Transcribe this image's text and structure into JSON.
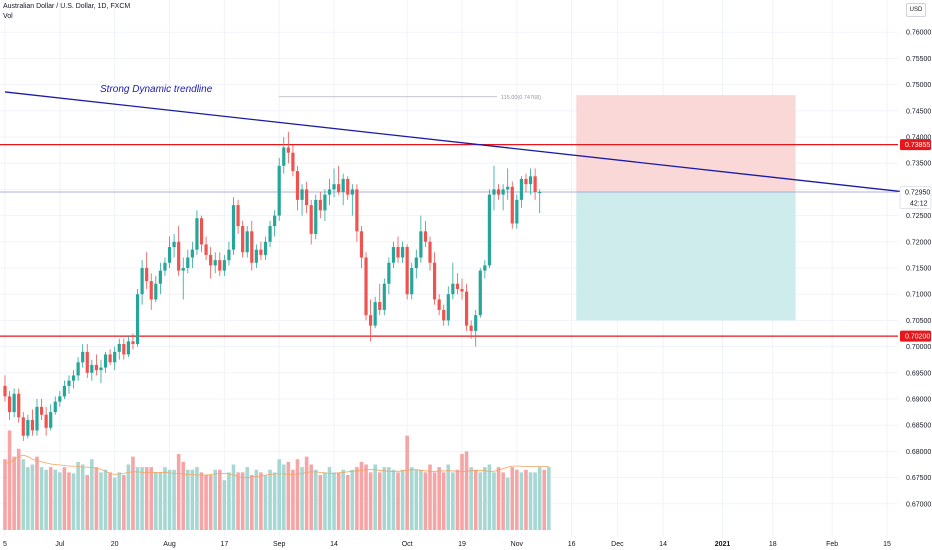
{
  "header": {
    "symbol_line": "Australian Dollar / U.S. Dollar, 1D, FXCM",
    "volume_label": "Vol"
  },
  "currency_button": "USD",
  "chart_data": {
    "type": "candlestick",
    "title": "Australian Dollar / U.S. Dollar, 1D, FXCM",
    "ylim": [
      0.665,
      0.765
    ],
    "y_ticks": [
      0.67,
      0.675,
      0.68,
      0.685,
      0.69,
      0.695,
      0.7,
      0.705,
      0.71,
      0.715,
      0.72,
      0.725,
      0.73,
      0.735,
      0.74,
      0.745,
      0.75,
      0.755,
      0.76
    ],
    "y_tick_labels": [
      "0.67000",
      "0.67500",
      "0.68000",
      "0.68500",
      "0.69000",
      "0.69500",
      "0.70000",
      "0.70500",
      "0.71000",
      "0.71500",
      "0.72000",
      "0.72500",
      "0.73000",
      "0.73500",
      "0.74000",
      "0.74500",
      "0.75000",
      "0.75500",
      "0.76000"
    ],
    "x_tick_labels": [
      "5",
      "Jul",
      "20",
      "Aug",
      "17",
      "Sep",
      "14",
      "Oct",
      "19",
      "Nov",
      "16",
      "Dec",
      "14",
      "2021",
      "18",
      "Feb",
      "15"
    ],
    "x_tick_bars": [
      0,
      12,
      24,
      36,
      48,
      60,
      72,
      88,
      100,
      112,
      124,
      134,
      144,
      157,
      168,
      181,
      193
    ],
    "annotation": "Strong Dynamic trendline",
    "fib_label": "115.00(0.74768)",
    "fib_price": 0.74768,
    "resistance": {
      "price": 0.73855,
      "label": "0.73855",
      "color": "#e8151a"
    },
    "support": {
      "price": 0.702,
      "label": "0.70200",
      "color": "#e8151a"
    },
    "current_price": {
      "price": 0.7295,
      "label": "0.72950",
      "countdown": "42:12"
    },
    "trendline": {
      "start_bar": 0,
      "start_price": 0.7486,
      "end_bar": 197,
      "end_price": 0.7295,
      "color": "#1a1aa8"
    },
    "position": {
      "start_bar": 125,
      "end_bar": 173,
      "entry": 0.7295,
      "stop": 0.748,
      "target": 0.705,
      "risk_color": "#fbd8d8",
      "reward_color": "#cdeceb"
    },
    "volume_ma": [
      0.6778,
      0.6778,
      0.6785,
      0.679,
      0.6793,
      0.679,
      0.6785,
      0.6782,
      0.678,
      0.6778,
      0.6776,
      0.6775,
      0.6774,
      0.6773,
      0.6772,
      0.6772,
      0.6771,
      0.677,
      0.677,
      0.6769,
      0.6768,
      0.6766,
      0.6762,
      0.6758,
      0.6756,
      0.6757,
      0.6758,
      0.676,
      0.6761,
      0.6761,
      0.676,
      0.676,
      0.676,
      0.676,
      0.676,
      0.676,
      0.6759,
      0.6758,
      0.6758,
      0.6757,
      0.6756,
      0.6756,
      0.6755,
      0.6755,
      0.6755,
      0.6756,
      0.6757,
      0.6758,
      0.6758,
      0.6757,
      0.6755,
      0.6752,
      0.675,
      0.675,
      0.6751,
      0.6752,
      0.6753,
      0.6755,
      0.6756,
      0.6757,
      0.6757,
      0.6757,
      0.6756,
      0.6756,
      0.6757,
      0.6758,
      0.676,
      0.6761,
      0.6761,
      0.676,
      0.6759,
      0.6758,
      0.6758,
      0.6759,
      0.676,
      0.6761,
      0.6762,
      0.6763,
      0.6764,
      0.6765,
      0.6765,
      0.6765,
      0.6764,
      0.6763,
      0.6762,
      0.6762,
      0.6762,
      0.6763,
      0.6764,
      0.6765,
      0.6765,
      0.6764,
      0.6763,
      0.6762,
      0.6762,
      0.6762,
      0.6763,
      0.6763,
      0.6763,
      0.6762,
      0.6762,
      0.6762,
      0.6763,
      0.6764,
      0.6764,
      0.6763,
      0.6762,
      0.6762,
      0.6765,
      0.6767,
      0.677,
      0.6772,
      0.6772,
      0.6772,
      0.6771,
      0.6771,
      0.6771,
      0.6771,
      0.6771,
      0.6771
    ],
    "candles": [
      [
        0.6925,
        0.6945,
        0.6895,
        0.6905
      ],
      [
        0.6905,
        0.6915,
        0.686,
        0.6875
      ],
      [
        0.6875,
        0.692,
        0.6865,
        0.691
      ],
      [
        0.691,
        0.692,
        0.6855,
        0.6865
      ],
      [
        0.6865,
        0.6875,
        0.682,
        0.683
      ],
      [
        0.683,
        0.687,
        0.6825,
        0.686
      ],
      [
        0.686,
        0.688,
        0.683,
        0.684
      ],
      [
        0.684,
        0.69,
        0.683,
        0.6885
      ],
      [
        0.6885,
        0.69,
        0.686,
        0.687
      ],
      [
        0.687,
        0.6885,
        0.683,
        0.6845
      ],
      [
        0.6845,
        0.689,
        0.684,
        0.6875
      ],
      [
        0.6875,
        0.6905,
        0.687,
        0.6895
      ],
      [
        0.6895,
        0.6915,
        0.6885,
        0.6905
      ],
      [
        0.6905,
        0.6935,
        0.69,
        0.6925
      ],
      [
        0.6925,
        0.6945,
        0.691,
        0.6935
      ],
      [
        0.6935,
        0.6955,
        0.692,
        0.6945
      ],
      [
        0.6945,
        0.698,
        0.6935,
        0.697
      ],
      [
        0.697,
        0.7005,
        0.696,
        0.699
      ],
      [
        0.699,
        0.7005,
        0.694,
        0.695
      ],
      [
        0.695,
        0.6975,
        0.6935,
        0.6965
      ],
      [
        0.6965,
        0.6985,
        0.6945,
        0.6955
      ],
      [
        0.6955,
        0.6975,
        0.693,
        0.696
      ],
      [
        0.696,
        0.699,
        0.695,
        0.6985
      ],
      [
        0.6985,
        0.6995,
        0.6965,
        0.697
      ],
      [
        0.697,
        0.7,
        0.6955,
        0.699
      ],
      [
        0.699,
        0.7015,
        0.6975,
        0.7005
      ],
      [
        0.7005,
        0.7015,
        0.6975,
        0.6985
      ],
      [
        0.6985,
        0.702,
        0.698,
        0.701
      ],
      [
        0.701,
        0.7025,
        0.6995,
        0.7005
      ],
      [
        0.7005,
        0.711,
        0.7,
        0.71
      ],
      [
        0.71,
        0.7165,
        0.708,
        0.715
      ],
      [
        0.715,
        0.718,
        0.711,
        0.7125
      ],
      [
        0.7125,
        0.714,
        0.707,
        0.709
      ],
      [
        0.709,
        0.7135,
        0.7085,
        0.712
      ],
      [
        0.712,
        0.716,
        0.71,
        0.7145
      ],
      [
        0.7145,
        0.717,
        0.7135,
        0.716
      ],
      [
        0.716,
        0.721,
        0.715,
        0.719
      ],
      [
        0.719,
        0.7215,
        0.717,
        0.72
      ],
      [
        0.72,
        0.723,
        0.7135,
        0.7145
      ],
      [
        0.7145,
        0.717,
        0.709,
        0.715
      ],
      [
        0.715,
        0.7185,
        0.714,
        0.717
      ],
      [
        0.717,
        0.72,
        0.715,
        0.7185
      ],
      [
        0.7185,
        0.726,
        0.7175,
        0.7245
      ],
      [
        0.7245,
        0.725,
        0.718,
        0.7195
      ],
      [
        0.7195,
        0.721,
        0.7165,
        0.7175
      ],
      [
        0.7175,
        0.719,
        0.713,
        0.7155
      ],
      [
        0.7155,
        0.718,
        0.714,
        0.7165
      ],
      [
        0.7165,
        0.718,
        0.7135,
        0.7145
      ],
      [
        0.7145,
        0.7175,
        0.7135,
        0.7165
      ],
      [
        0.7165,
        0.72,
        0.7155,
        0.7185
      ],
      [
        0.7185,
        0.7285,
        0.7175,
        0.727
      ],
      [
        0.727,
        0.728,
        0.7215,
        0.723
      ],
      [
        0.723,
        0.724,
        0.717,
        0.718
      ],
      [
        0.718,
        0.723,
        0.717,
        0.722
      ],
      [
        0.722,
        0.724,
        0.7145,
        0.716
      ],
      [
        0.716,
        0.7195,
        0.715,
        0.7185
      ],
      [
        0.7185,
        0.72,
        0.7165,
        0.7175
      ],
      [
        0.7175,
        0.721,
        0.7165,
        0.72
      ],
      [
        0.72,
        0.724,
        0.719,
        0.723
      ],
      [
        0.723,
        0.726,
        0.721,
        0.725
      ],
      [
        0.725,
        0.736,
        0.724,
        0.7345
      ],
      [
        0.7345,
        0.74,
        0.733,
        0.738
      ],
      [
        0.738,
        0.741,
        0.735,
        0.737
      ],
      [
        0.737,
        0.7385,
        0.7325,
        0.7335
      ],
      [
        0.7335,
        0.7345,
        0.726,
        0.728
      ],
      [
        0.728,
        0.731,
        0.725,
        0.73
      ],
      [
        0.73,
        0.7315,
        0.7255,
        0.727
      ],
      [
        0.727,
        0.728,
        0.7195,
        0.7215
      ],
      [
        0.7215,
        0.729,
        0.7205,
        0.728
      ],
      [
        0.728,
        0.7295,
        0.7245,
        0.726
      ],
      [
        0.726,
        0.73,
        0.724,
        0.729
      ],
      [
        0.729,
        0.732,
        0.727,
        0.73
      ],
      [
        0.73,
        0.734,
        0.7285,
        0.731
      ],
      [
        0.731,
        0.7345,
        0.729,
        0.7295
      ],
      [
        0.7295,
        0.733,
        0.727,
        0.732
      ],
      [
        0.732,
        0.7325,
        0.728,
        0.729
      ],
      [
        0.729,
        0.731,
        0.725,
        0.73
      ],
      [
        0.73,
        0.731,
        0.72,
        0.722
      ],
      [
        0.722,
        0.723,
        0.715,
        0.717
      ],
      [
        0.717,
        0.718,
        0.705,
        0.706
      ],
      [
        0.706,
        0.709,
        0.701,
        0.704
      ],
      [
        0.704,
        0.7095,
        0.7035,
        0.7085
      ],
      [
        0.7085,
        0.712,
        0.706,
        0.707
      ],
      [
        0.707,
        0.713,
        0.706,
        0.712
      ],
      [
        0.712,
        0.717,
        0.71,
        0.716
      ],
      [
        0.716,
        0.72,
        0.715,
        0.719
      ],
      [
        0.719,
        0.721,
        0.716,
        0.717
      ],
      [
        0.717,
        0.72,
        0.716,
        0.719
      ],
      [
        0.719,
        0.7195,
        0.709,
        0.71
      ],
      [
        0.71,
        0.716,
        0.709,
        0.715
      ],
      [
        0.715,
        0.7185,
        0.713,
        0.717
      ],
      [
        0.717,
        0.725,
        0.716,
        0.722
      ],
      [
        0.722,
        0.724,
        0.719,
        0.72
      ],
      [
        0.72,
        0.721,
        0.7145,
        0.716
      ],
      [
        0.716,
        0.718,
        0.708,
        0.709
      ],
      [
        0.709,
        0.71,
        0.706,
        0.707
      ],
      [
        0.707,
        0.708,
        0.704,
        0.705
      ],
      [
        0.705,
        0.7115,
        0.704,
        0.71
      ],
      [
        0.71,
        0.716,
        0.709,
        0.712
      ],
      [
        0.712,
        0.714,
        0.71,
        0.711
      ],
      [
        0.711,
        0.713,
        0.709,
        0.7105
      ],
      [
        0.7105,
        0.712,
        0.703,
        0.704
      ],
      [
        0.704,
        0.705,
        0.7015,
        0.703
      ],
      [
        0.703,
        0.707,
        0.7,
        0.706
      ],
      [
        0.706,
        0.715,
        0.7055,
        0.7145
      ],
      [
        0.7145,
        0.7165,
        0.713,
        0.7155
      ],
      [
        0.7155,
        0.73,
        0.715,
        0.729
      ],
      [
        0.729,
        0.7345,
        0.726,
        0.73
      ],
      [
        0.73,
        0.731,
        0.728,
        0.729
      ],
      [
        0.729,
        0.731,
        0.726,
        0.73
      ],
      [
        0.73,
        0.734,
        0.728,
        0.7305
      ],
      [
        0.7305,
        0.7315,
        0.7225,
        0.7235
      ],
      [
        0.7235,
        0.729,
        0.7225,
        0.728
      ],
      [
        0.728,
        0.7325,
        0.7265,
        0.732
      ],
      [
        0.732,
        0.733,
        0.7295,
        0.731
      ],
      [
        0.731,
        0.734,
        0.729,
        0.7325
      ],
      [
        0.7325,
        0.734,
        0.728,
        0.7295
      ],
      [
        0.7295,
        0.73,
        0.7255,
        0.7295
      ]
    ],
    "volumes": [
      [
        0.6785,
        0
      ],
      [
        0.684,
        0
      ],
      [
        0.679,
        0
      ],
      [
        0.6805,
        0
      ],
      [
        0.6785,
        1
      ],
      [
        0.677,
        1
      ],
      [
        0.6775,
        1
      ],
      [
        0.679,
        0
      ],
      [
        0.677,
        1
      ],
      [
        0.6765,
        1
      ],
      [
        0.677,
        0
      ],
      [
        0.6765,
        1
      ],
      [
        0.676,
        1
      ],
      [
        0.677,
        0
      ],
      [
        0.676,
        0
      ],
      [
        0.6758,
        1
      ],
      [
        0.678,
        1
      ],
      [
        0.6775,
        1
      ],
      [
        0.6755,
        0
      ],
      [
        0.6785,
        1
      ],
      [
        0.677,
        0
      ],
      [
        0.676,
        1
      ],
      [
        0.6765,
        1
      ],
      [
        0.676,
        0
      ],
      [
        0.675,
        1
      ],
      [
        0.676,
        1
      ],
      [
        0.6755,
        0
      ],
      [
        0.6775,
        1
      ],
      [
        0.679,
        0
      ],
      [
        0.677,
        1
      ],
      [
        0.677,
        1
      ],
      [
        0.677,
        0
      ],
      [
        0.677,
        0
      ],
      [
        0.676,
        1
      ],
      [
        0.676,
        1
      ],
      [
        0.677,
        1
      ],
      [
        0.6765,
        1
      ],
      [
        0.6765,
        1
      ],
      [
        0.6795,
        0
      ],
      [
        0.678,
        0
      ],
      [
        0.6765,
        1
      ],
      [
        0.6765,
        1
      ],
      [
        0.677,
        1
      ],
      [
        0.676,
        0
      ],
      [
        0.6755,
        0
      ],
      [
        0.6755,
        0
      ],
      [
        0.6765,
        1
      ],
      [
        0.6765,
        0
      ],
      [
        0.6745,
        1
      ],
      [
        0.676,
        1
      ],
      [
        0.6775,
        1
      ],
      [
        0.676,
        0
      ],
      [
        0.676,
        0
      ],
      [
        0.677,
        1
      ],
      [
        0.6755,
        0
      ],
      [
        0.6765,
        1
      ],
      [
        0.676,
        0
      ],
      [
        0.6755,
        1
      ],
      [
        0.6765,
        1
      ],
      [
        0.676,
        1
      ],
      [
        0.6785,
        1
      ],
      [
        0.6775,
        1
      ],
      [
        0.678,
        0
      ],
      [
        0.6765,
        0
      ],
      [
        0.6785,
        0
      ],
      [
        0.677,
        1
      ],
      [
        0.679,
        0
      ],
      [
        0.6775,
        0
      ],
      [
        0.6765,
        1
      ],
      [
        0.6755,
        0
      ],
      [
        0.676,
        1
      ],
      [
        0.677,
        1
      ],
      [
        0.676,
        1
      ],
      [
        0.676,
        0
      ],
      [
        0.6765,
        1
      ],
      [
        0.6755,
        0
      ],
      [
        0.6765,
        1
      ],
      [
        0.677,
        0
      ],
      [
        0.678,
        0
      ],
      [
        0.6775,
        0
      ],
      [
        0.676,
        0
      ],
      [
        0.6775,
        1
      ],
      [
        0.676,
        0
      ],
      [
        0.677,
        1
      ],
      [
        0.677,
        1
      ],
      [
        0.6765,
        1
      ],
      [
        0.676,
        0
      ],
      [
        0.6765,
        1
      ],
      [
        0.683,
        0
      ],
      [
        0.677,
        1
      ],
      [
        0.6765,
        1
      ],
      [
        0.6765,
        1
      ],
      [
        0.676,
        0
      ],
      [
        0.6775,
        0
      ],
      [
        0.676,
        0
      ],
      [
        0.677,
        0
      ],
      [
        0.676,
        0
      ],
      [
        0.6775,
        1
      ],
      [
        0.676,
        1
      ],
      [
        0.6765,
        0
      ],
      [
        0.6795,
        0
      ],
      [
        0.68,
        0
      ],
      [
        0.677,
        1
      ],
      [
        0.6765,
        0
      ],
      [
        0.676,
        1
      ],
      [
        0.677,
        1
      ],
      [
        0.6775,
        1
      ],
      [
        0.676,
        1
      ],
      [
        0.677,
        0
      ],
      [
        0.676,
        0
      ],
      [
        0.675,
        1
      ],
      [
        0.677,
        0
      ],
      [
        0.6765,
        0
      ],
      [
        0.676,
        1
      ],
      [
        0.6765,
        0
      ],
      [
        0.676,
        1
      ],
      [
        0.676,
        1
      ],
      [
        0.677,
        1
      ],
      [
        0.6765,
        0
      ],
      [
        0.677,
        1
      ]
    ]
  },
  "colors": {
    "up": "#26a69a",
    "down": "#ef5350",
    "vol_up": "#a7d7d2",
    "vol_down": "#f5a5a5",
    "vol_ma": "#f4a460",
    "grid": "#f0f3fa",
    "axis_text": "#131722"
  }
}
